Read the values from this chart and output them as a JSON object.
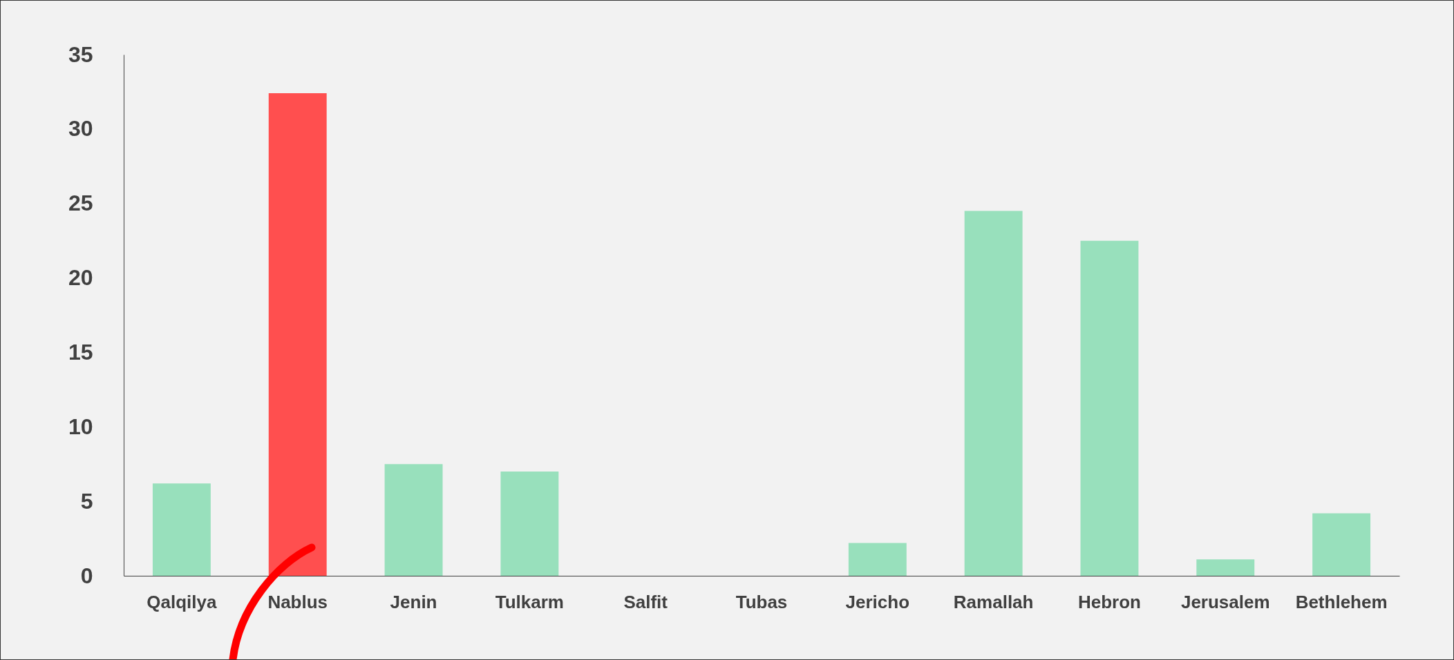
{
  "chart_data": {
    "type": "bar",
    "categories": [
      "Qalqilya",
      "Nablus",
      "Jenin",
      "Tulkarm",
      "Salfit",
      "Tubas",
      "Jericho",
      "Ramallah",
      "Hebron",
      "Jerusalem",
      "Bethlehem"
    ],
    "values": [
      6.2,
      32.4,
      7.5,
      7.0,
      0,
      0,
      2.2,
      24.5,
      22.5,
      1.1,
      4.2
    ],
    "colors": [
      "#98e0bc",
      "#ff4f4f",
      "#98e0bc",
      "#98e0bc",
      "#98e0bc",
      "#98e0bc",
      "#98e0bc",
      "#98e0bc",
      "#98e0bc",
      "#98e0bc",
      "#98e0bc"
    ],
    "ylim": [
      0,
      35
    ],
    "yticks": [
      0,
      5,
      10,
      15,
      20,
      25,
      30,
      35
    ]
  }
}
